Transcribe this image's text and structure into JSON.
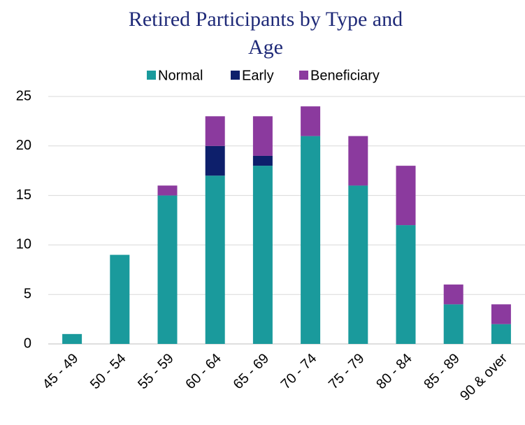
{
  "chart_data": {
    "type": "stacked_bar",
    "title": "Retired Participants by Type and Age",
    "categories": [
      "45 - 49",
      "50 - 54",
      "55 - 59",
      "60 - 64",
      "65 - 69",
      "70 - 74",
      "75 - 79",
      "80 - 84",
      "85 - 89",
      "90 & over"
    ],
    "series": [
      {
        "name": "Normal",
        "color": "#1a9a9c",
        "values": [
          1,
          9,
          15,
          17,
          18,
          21,
          16,
          12,
          4,
          2
        ]
      },
      {
        "name": "Early",
        "color": "#0d1f6b",
        "values": [
          0,
          0,
          0,
          3,
          1,
          0,
          0,
          0,
          0,
          0
        ]
      },
      {
        "name": "Beneficiary",
        "color": "#8b3a9e",
        "values": [
          0,
          0,
          1,
          3,
          4,
          3,
          5,
          6,
          2,
          2
        ]
      }
    ],
    "ylim": [
      0,
      25
    ],
    "yticks": [
      0,
      5,
      10,
      15,
      20,
      25
    ],
    "grid": true,
    "legend": "top"
  }
}
